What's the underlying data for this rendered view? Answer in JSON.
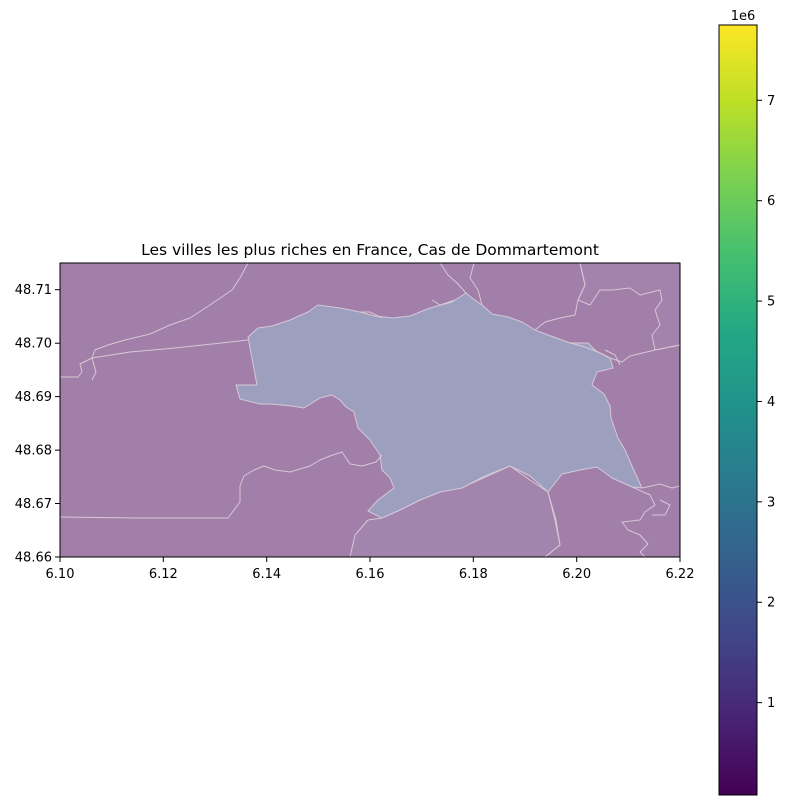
{
  "map": {
    "title": "Les villes les plus riches en France, Cas de Dommartemont",
    "x_ticks": [
      "6.10",
      "6.12",
      "6.14",
      "6.16",
      "6.18",
      "6.20",
      "6.22"
    ],
    "y_ticks": [
      "48.71",
      "48.70",
      "48.69",
      "48.68",
      "48.67",
      "48.66"
    ],
    "xlim": [
      6.1,
      6.22
    ],
    "ylim": [
      48.66,
      48.715
    ],
    "colors": {
      "background_region": "#a17fa9",
      "highlighted_region": "#9d9fbf",
      "boundary": "#d7c8d6"
    }
  },
  "colorbar": {
    "multiplier_label": "1e6",
    "ticks": [
      "1",
      "2",
      "3",
      "4",
      "5",
      "6",
      "7"
    ],
    "tick_values": [
      1,
      2,
      3,
      4,
      5,
      6,
      7
    ],
    "range": [
      0.08,
      7.75
    ],
    "colormap": "viridis"
  }
}
